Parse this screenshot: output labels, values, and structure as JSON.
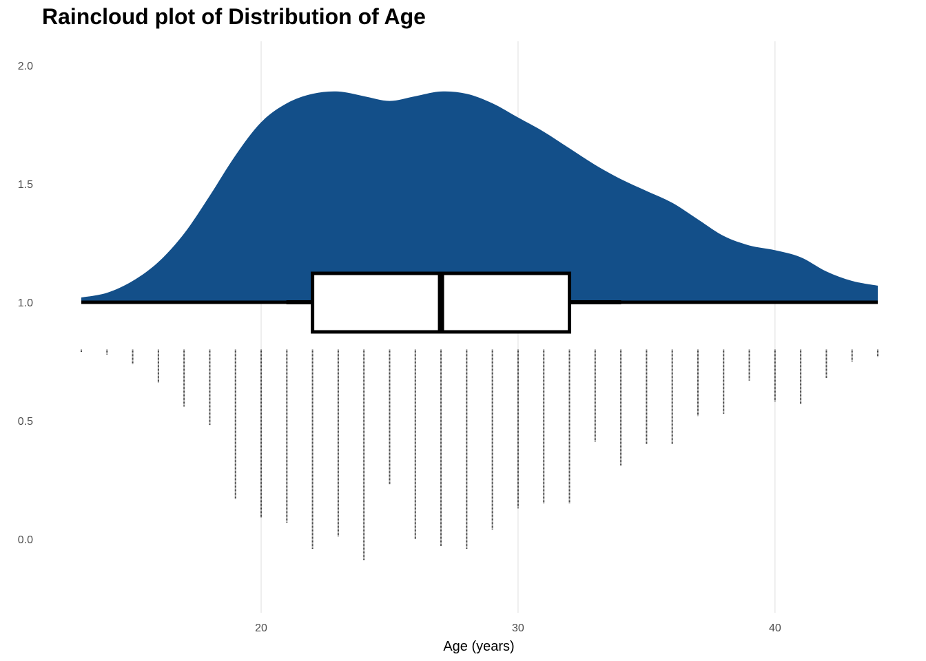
{
  "chart_data": {
    "type": "raincloud",
    "title": "Raincloud plot of Distribution of Age",
    "xlabel": "Age (years)",
    "ylabel": "",
    "xlim": [
      13,
      44
    ],
    "ylim": [
      -0.28,
      2.1
    ],
    "x_ticks": [
      20,
      30,
      40
    ],
    "x_tick_labels": [
      "20",
      "30",
      "40"
    ],
    "y_ticks": [
      0.0,
      0.5,
      1.0,
      1.5,
      2.0
    ],
    "y_tick_labels": [
      "0.0",
      "0.5",
      "1.0",
      "1.5",
      "2.0"
    ],
    "grid": "vertical major lines only",
    "colors": {
      "density_fill": "#134f89",
      "box_fill": "#ffffff",
      "box_outline": "#000000",
      "rain": "#000000"
    },
    "density": {
      "baseline": 1.0,
      "x": [
        13,
        14,
        15,
        16,
        17,
        18,
        19,
        20,
        21,
        22,
        23,
        24,
        25,
        26,
        27,
        28,
        29,
        30,
        31,
        32,
        33,
        34,
        35,
        36,
        37,
        38,
        39,
        40,
        41,
        42,
        43,
        44
      ],
      "y": [
        1.02,
        1.04,
        1.09,
        1.17,
        1.29,
        1.45,
        1.62,
        1.76,
        1.84,
        1.88,
        1.89,
        1.87,
        1.85,
        1.87,
        1.89,
        1.88,
        1.84,
        1.78,
        1.72,
        1.65,
        1.58,
        1.52,
        1.47,
        1.42,
        1.35,
        1.28,
        1.24,
        1.22,
        1.19,
        1.13,
        1.09,
        1.07
      ]
    },
    "boxplot": {
      "y_center": 1.0,
      "whisker_low": 13,
      "q1": 22,
      "median": 27,
      "q3": 32,
      "whisker_high": 44
    },
    "rain": {
      "top": 0.8,
      "x": [
        13,
        14,
        15,
        16,
        17,
        18,
        19,
        20,
        21,
        22,
        23,
        24,
        25,
        26,
        27,
        28,
        29,
        30,
        31,
        32,
        33,
        34,
        35,
        36,
        37,
        38,
        39,
        40,
        41,
        42,
        43,
        44
      ],
      "y_end": [
        0.79,
        0.78,
        0.74,
        0.66,
        0.56,
        0.48,
        0.17,
        0.09,
        0.07,
        -0.04,
        0.01,
        -0.09,
        0.23,
        0.0,
        -0.03,
        -0.04,
        0.04,
        0.13,
        0.15,
        0.15,
        0.41,
        0.31,
        0.4,
        0.4,
        0.52,
        0.53,
        0.67,
        0.58,
        0.57,
        0.68,
        0.75,
        0.77
      ]
    }
  }
}
